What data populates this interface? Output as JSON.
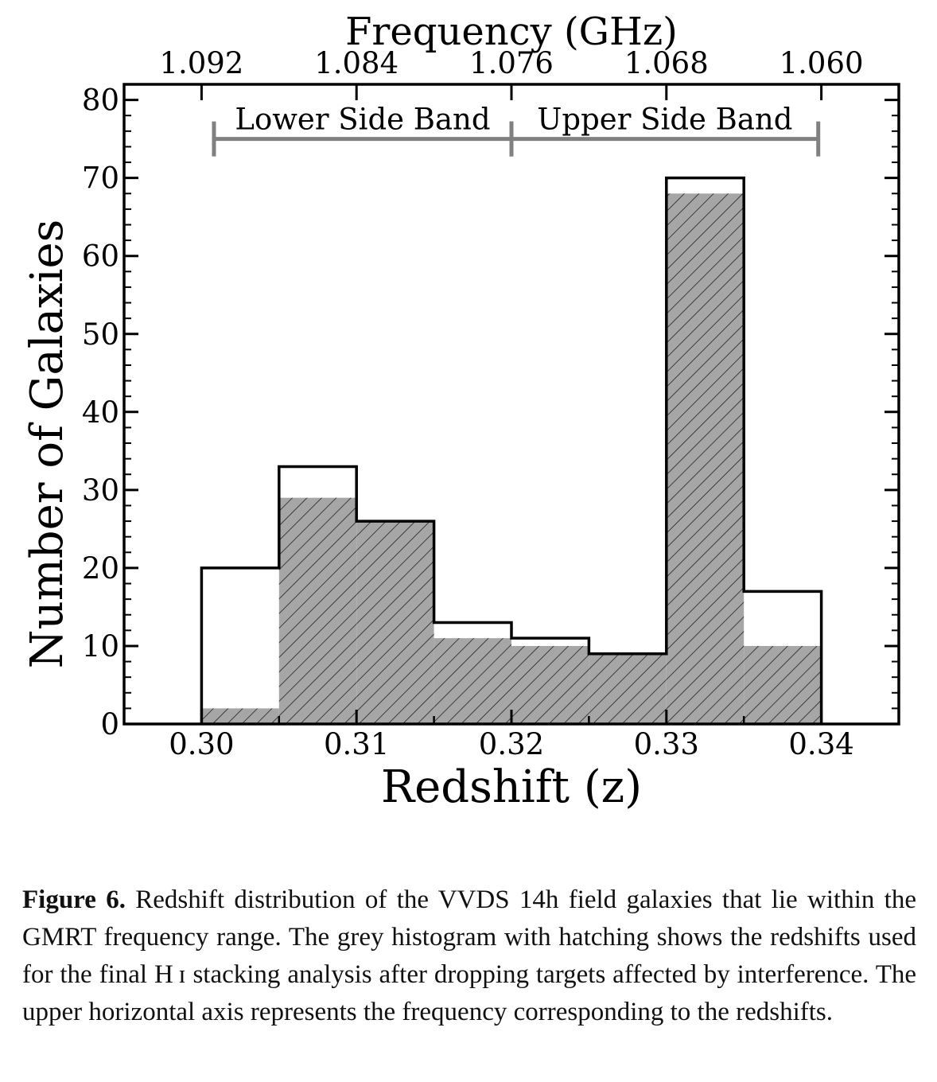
{
  "chart_data": {
    "type": "bar",
    "xlabel": "Redshift (z)",
    "ylabel": "Number of Galaxies",
    "top_xlabel": "Frequency (GHz)",
    "xlim": [
      0.295,
      0.345
    ],
    "ylim": [
      0,
      82
    ],
    "bin_edges": [
      0.3,
      0.305,
      0.31,
      0.315,
      0.32,
      0.325,
      0.33,
      0.335,
      0.34
    ],
    "series": [
      {
        "name": "",
        "style": "outline",
        "values": [
          20,
          33,
          26,
          13,
          11,
          9,
          70,
          17
        ]
      },
      {
        "name": "",
        "style": "grey-hatched",
        "values": [
          2,
          29,
          26,
          11,
          10,
          9,
          68,
          10
        ]
      }
    ],
    "x_ticks": [
      {
        "value": 0.3,
        "label": "0.30"
      },
      {
        "value": 0.31,
        "label": "0.31"
      },
      {
        "value": 0.32,
        "label": "0.32"
      },
      {
        "value": 0.33,
        "label": "0.33"
      },
      {
        "value": 0.34,
        "label": "0.34"
      }
    ],
    "y_ticks": [
      {
        "value": 0,
        "label": "0"
      },
      {
        "value": 10,
        "label": "10"
      },
      {
        "value": 20,
        "label": "20"
      },
      {
        "value": 30,
        "label": "30"
      },
      {
        "value": 40,
        "label": "40"
      },
      {
        "value": 50,
        "label": "50"
      },
      {
        "value": 60,
        "label": "60"
      },
      {
        "value": 70,
        "label": "70"
      },
      {
        "value": 80,
        "label": "80"
      }
    ],
    "top_ticks": [
      {
        "z": 0.3,
        "label": "1.092"
      },
      {
        "z": 0.31,
        "label": "1.084"
      },
      {
        "z": 0.32,
        "label": "1.076"
      },
      {
        "z": 0.33,
        "label": "1.068"
      },
      {
        "z": 0.34,
        "label": "1.060"
      }
    ],
    "bands": [
      {
        "label": "Lower Side Band",
        "z_start": 0.3008,
        "z_end": 0.32,
        "y": 75
      },
      {
        "label": "Upper Side Band",
        "z_start": 0.32,
        "z_end": 0.3398,
        "y": 75
      }
    ],
    "colors": {
      "fill": "#a6a6a6",
      "hatch": "#222222",
      "band": "#808080",
      "outline": "#000000"
    }
  },
  "caption": {
    "label": "Figure 6.",
    "text": " Redshift distribution of the VVDS 14h field galaxies that lie within the GMRT frequency range. The grey histogram with hatching shows the redshifts used for the final H ɪ stacking analysis after dropping targets affected by interference. The upper horizontal axis represents the frequency corresponding to the redshifts."
  }
}
